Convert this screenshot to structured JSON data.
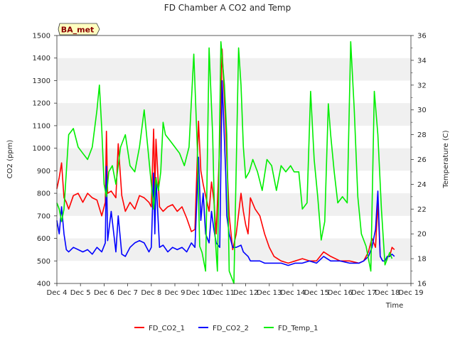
{
  "chart_data": {
    "type": "line",
    "title": "FD Chamber A CO2 and Temp",
    "badge": "BA_met",
    "xlabel": "Time",
    "ylabel_left": "CO2 (ppm)",
    "ylabel_right": "Temperature (C)",
    "x_ticks": [
      "Dec 4",
      "Dec 5",
      "Dec 6",
      "Dec 7",
      "Dec 8",
      "Dec 9",
      "Dec 10",
      "Dec 11",
      "Dec 12",
      "Dec 13",
      "Dec 14",
      "Dec 15",
      "Dec 16",
      "Dec 17",
      "Dec 18",
      "Dec 19"
    ],
    "xlim": [
      4,
      19
    ],
    "ylim_left": [
      400,
      1500
    ],
    "yticks_left": [
      400,
      500,
      600,
      700,
      800,
      900,
      1000,
      1100,
      1200,
      1300,
      1400,
      1500
    ],
    "ylim_right": [
      16,
      36
    ],
    "yticks_right": [
      16,
      18,
      20,
      22,
      24,
      26,
      28,
      30,
      32,
      34,
      36
    ],
    "grid": "horizontal bands",
    "legend_position": "bottom",
    "colors": {
      "FD_CO2_1": "#ff0000",
      "FD_CO2_2": "#0000ff",
      "FD_Temp_1": "#00ee00",
      "band": "#f0f0f0",
      "badge_fill": "#ffffc0",
      "badge_text": "#8b0000"
    },
    "series": [
      {
        "name": "FD_CO2_1",
        "axis": "left",
        "x": [
          4.0,
          4.1,
          4.2,
          4.3,
          4.4,
          4.5,
          4.7,
          4.9,
          5.1,
          5.3,
          5.5,
          5.7,
          5.9,
          6.05,
          6.1,
          6.15,
          6.3,
          6.5,
          6.6,
          6.75,
          6.9,
          7.1,
          7.3,
          7.5,
          7.7,
          7.9,
          8.0,
          8.1,
          8.15,
          8.2,
          8.35,
          8.5,
          8.7,
          8.9,
          9.1,
          9.3,
          9.5,
          9.7,
          9.85,
          10.0,
          10.1,
          10.2,
          10.3,
          10.45,
          10.55,
          10.65,
          10.75,
          10.9,
          11.0,
          11.15,
          11.2,
          11.3,
          11.45,
          11.6,
          11.8,
          11.9,
          12.0,
          12.1,
          12.2,
          12.4,
          12.6,
          12.8,
          13.0,
          13.2,
          13.5,
          13.8,
          14.1,
          14.4,
          14.7,
          15.0,
          15.3,
          15.6,
          16.0,
          16.4,
          16.8,
          17.0,
          17.2,
          17.35,
          17.5,
          17.6,
          17.7,
          17.8,
          17.9,
          18.0,
          18.1,
          18.2,
          18.3
        ],
        "values": [
          820,
          870,
          935,
          780,
          760,
          730,
          790,
          800,
          760,
          800,
          780,
          770,
          700,
          760,
          1075,
          800,
          810,
          780,
          1020,
          790,
          720,
          760,
          730,
          790,
          780,
          760,
          740,
          1085,
          800,
          1040,
          740,
          720,
          740,
          750,
          720,
          740,
          690,
          630,
          640,
          1120,
          900,
          840,
          790,
          720,
          850,
          770,
          620,
          1020,
          1440,
          1100,
          960,
          700,
          550,
          620,
          800,
          720,
          660,
          620,
          780,
          730,
          700,
          620,
          560,
          520,
          500,
          490,
          500,
          510,
          500,
          500,
          540,
          520,
          500,
          500,
          490,
          500,
          540,
          600,
          560,
          760,
          520,
          500,
          500,
          520,
          520,
          560,
          550
        ]
      },
      {
        "name": "FD_CO2_2",
        "axis": "left",
        "x": [
          4.0,
          4.1,
          4.2,
          4.3,
          4.4,
          4.5,
          4.7,
          4.9,
          5.1,
          5.3,
          5.5,
          5.7,
          5.9,
          6.05,
          6.1,
          6.15,
          6.3,
          6.5,
          6.6,
          6.75,
          6.9,
          7.1,
          7.3,
          7.5,
          7.7,
          7.9,
          8.0,
          8.1,
          8.15,
          8.2,
          8.35,
          8.5,
          8.7,
          8.9,
          9.1,
          9.3,
          9.5,
          9.7,
          9.85,
          10.0,
          10.1,
          10.2,
          10.3,
          10.45,
          10.55,
          10.65,
          10.75,
          10.9,
          11.0,
          11.15,
          11.2,
          11.3,
          11.45,
          11.6,
          11.8,
          11.9,
          12.0,
          12.1,
          12.2,
          12.4,
          12.6,
          12.8,
          13.0,
          13.2,
          13.5,
          13.8,
          14.1,
          14.4,
          14.7,
          15.0,
          15.3,
          15.6,
          16.0,
          16.4,
          16.8,
          17.0,
          17.2,
          17.35,
          17.5,
          17.6,
          17.7,
          17.8,
          17.9,
          18.0,
          18.1,
          18.2,
          18.3
        ],
        "values": [
          680,
          620,
          740,
          620,
          550,
          540,
          560,
          550,
          540,
          550,
          530,
          560,
          540,
          580,
          920,
          590,
          720,
          540,
          700,
          530,
          520,
          560,
          580,
          590,
          580,
          540,
          560,
          890,
          620,
          870,
          560,
          570,
          540,
          560,
          550,
          560,
          540,
          580,
          560,
          960,
          680,
          800,
          620,
          580,
          720,
          640,
          580,
          560,
          1300,
          900,
          700,
          620,
          560,
          560,
          570,
          540,
          530,
          520,
          500,
          500,
          500,
          490,
          490,
          490,
          490,
          480,
          490,
          490,
          500,
          490,
          520,
          500,
          500,
          490,
          490,
          500,
          520,
          560,
          640,
          810,
          520,
          500,
          500,
          520,
          520,
          530,
          520
        ]
      },
      {
        "name": "FD_Temp_1",
        "axis": "right",
        "x": [
          4.0,
          4.1,
          4.2,
          4.3,
          4.4,
          4.5,
          4.7,
          4.9,
          5.1,
          5.3,
          5.5,
          5.7,
          5.8,
          5.9,
          6.0,
          6.1,
          6.2,
          6.35,
          6.5,
          6.7,
          6.9,
          7.1,
          7.3,
          7.5,
          7.7,
          7.9,
          8.0,
          8.1,
          8.2,
          8.3,
          8.4,
          8.5,
          8.6,
          8.8,
          9.0,
          9.2,
          9.4,
          9.6,
          9.8,
          9.95,
          10.05,
          10.15,
          10.3,
          10.45,
          10.6,
          10.7,
          10.8,
          10.95,
          11.1,
          11.2,
          11.3,
          11.5,
          11.7,
          11.8,
          11.9,
          12.0,
          12.15,
          12.3,
          12.5,
          12.7,
          12.9,
          13.1,
          13.3,
          13.5,
          13.7,
          13.9,
          14.05,
          14.25,
          14.4,
          14.6,
          14.75,
          14.9,
          15.05,
          15.2,
          15.35,
          15.5,
          15.6,
          15.75,
          15.9,
          16.1,
          16.3,
          16.45,
          16.6,
          16.75,
          16.9,
          17.1,
          17.3,
          17.45,
          17.6,
          17.75,
          17.9,
          18.0,
          18.1,
          18.2
        ],
        "values": [
          22.5,
          22.0,
          21.0,
          22.0,
          25.0,
          28.0,
          28.5,
          27.0,
          26.5,
          26.0,
          27.0,
          30.0,
          32.0,
          28.5,
          24.0,
          23.0,
          25.0,
          25.5,
          24.0,
          27.0,
          28.0,
          25.5,
          25.0,
          27.0,
          30.0,
          26.0,
          24.0,
          22.0,
          24.5,
          23.5,
          25.0,
          29.0,
          28.0,
          27.5,
          27.0,
          26.5,
          25.5,
          27.0,
          34.5,
          27.0,
          19.0,
          18.5,
          17.0,
          35.0,
          28.0,
          20.0,
          17.0,
          35.5,
          32.0,
          28.0,
          17.0,
          16.0,
          35.0,
          32.0,
          27.0,
          24.5,
          25.0,
          26.0,
          25.0,
          23.5,
          26.0,
          25.5,
          23.5,
          25.5,
          25.0,
          25.5,
          25.0,
          25.0,
          22.0,
          22.5,
          31.5,
          26.0,
          23.0,
          19.5,
          21.0,
          30.5,
          28.0,
          25.0,
          22.5,
          23.0,
          22.5,
          35.5,
          30.0,
          23.0,
          20.0,
          19.0,
          17.0,
          31.5,
          28.0,
          22.0,
          17.5,
          18.0,
          18.5,
          18.0
        ]
      }
    ]
  }
}
